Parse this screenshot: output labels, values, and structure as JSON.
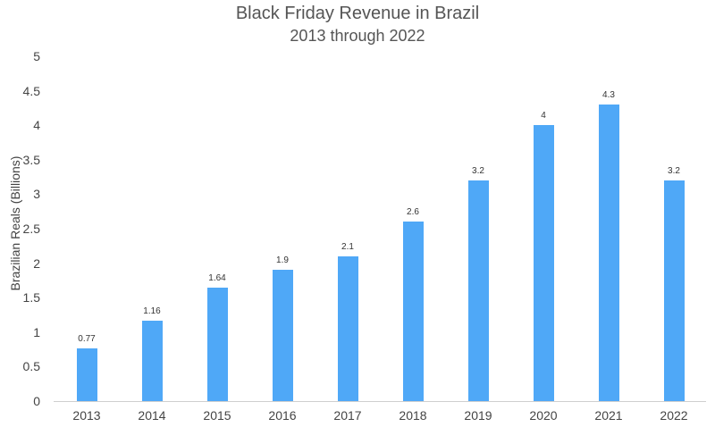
{
  "chart_data": {
    "type": "bar",
    "title": "Black Friday Revenue in Brazil",
    "subtitle": "2013 through 2022",
    "xlabel": "",
    "ylabel": "Brazilian Reals (Billions)",
    "categories": [
      "2013",
      "2014",
      "2015",
      "2016",
      "2017",
      "2018",
      "2019",
      "2020",
      "2021",
      "2022"
    ],
    "values": [
      0.77,
      1.16,
      1.64,
      1.9,
      2.1,
      2.6,
      3.2,
      4,
      4.3,
      3.2
    ],
    "data_labels": [
      "0.77",
      "1.16",
      "1.64",
      "1.9",
      "2.1",
      "2.6",
      "3.2",
      "4",
      "4.3",
      "3.2"
    ],
    "ylim": [
      0,
      5
    ],
    "yticks": [
      "0",
      "0.5",
      "1",
      "1.5",
      "2",
      "2.5",
      "3",
      "3.5",
      "4",
      "4.5",
      "5"
    ],
    "grid": false,
    "legend": "none",
    "bar_color": "#4FA8F7"
  }
}
